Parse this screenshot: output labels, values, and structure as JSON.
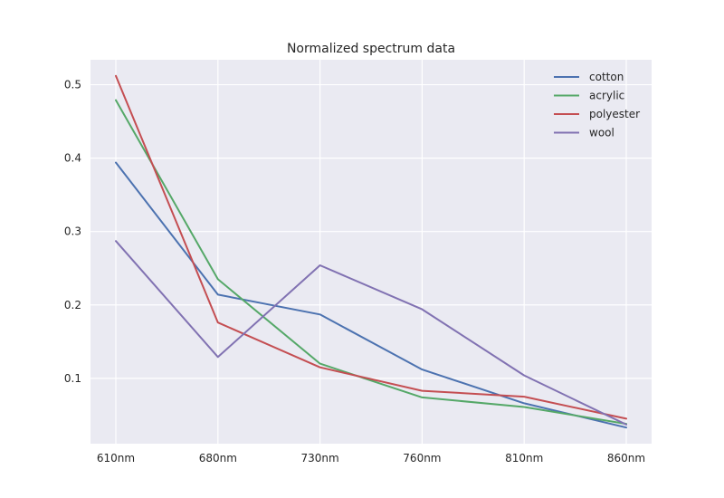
{
  "chart_data": {
    "type": "line",
    "title": "Normalized spectrum data",
    "xlabel": "",
    "ylabel": "",
    "categories": [
      "610nm",
      "680nm",
      "730nm",
      "760nm",
      "810nm",
      "860nm"
    ],
    "series": [
      {
        "name": "cotton",
        "color": "#4c72b0",
        "values": [
          0.394,
          0.214,
          0.187,
          0.112,
          0.066,
          0.033
        ]
      },
      {
        "name": "acrylic",
        "color": "#55a868",
        "values": [
          0.479,
          0.235,
          0.12,
          0.074,
          0.061,
          0.038
        ]
      },
      {
        "name": "polyester",
        "color": "#c44e52",
        "values": [
          0.512,
          0.176,
          0.115,
          0.083,
          0.075,
          0.045
        ]
      },
      {
        "name": "wool",
        "color": "#8172b2",
        "values": [
          0.287,
          0.129,
          0.254,
          0.194,
          0.104,
          0.037
        ]
      }
    ],
    "ylim": [
      0.011,
      0.534
    ],
    "yticks": [
      "0.1",
      "0.2",
      "0.3",
      "0.4",
      "0.5"
    ],
    "grid": true,
    "legend_position": "top-right"
  }
}
